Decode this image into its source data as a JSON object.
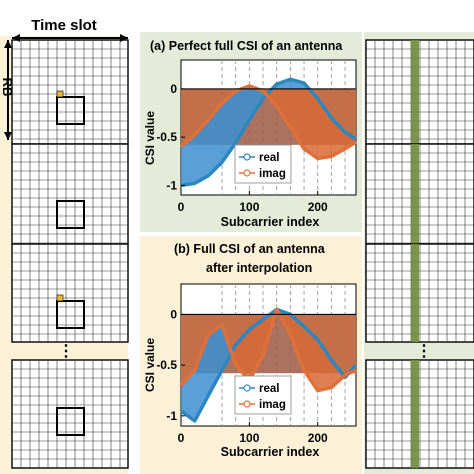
{
  "header": {
    "time_slot_label": "Time slot",
    "rb_label": "RB"
  },
  "left_column": {
    "background": "#fbf1d6",
    "pilot_color": "#f0b43c",
    "ellipsis": "⋮"
  },
  "right_column": {
    "background": "#e4ecd9",
    "stripe_color": "#6b8c3a",
    "ellipsis": "⋮"
  },
  "panel_a": {
    "title": "(a)  Perfect full CSI of an antenna",
    "background": "#e4ecd9",
    "ylabel": "CSI value",
    "xlabel": "Subcarrier index",
    "xticks": [
      "0",
      "100",
      "200"
    ],
    "yticks": [
      "0",
      "-0.5",
      "-1"
    ],
    "legend": [
      "real",
      "imag"
    ]
  },
  "panel_b": {
    "title_line1": "(b)  Full CSI of an antenna",
    "title_line2": "after interpolation",
    "background": "#fbf1d6",
    "ylabel": "CSI value",
    "xlabel": "Subcarrier index",
    "xticks": [
      "0",
      "100",
      "200"
    ],
    "yticks": [
      "0",
      "-0.5",
      "-1"
    ],
    "legend": [
      "real",
      "imag"
    ]
  },
  "colors": {
    "real": "#2e86c1",
    "real_fill": "#3b8fd0",
    "imag": "#e0703a",
    "imag_fill": "#d86a32"
  },
  "chart_data": [
    {
      "type": "line",
      "title": "Perfect full CSI of an antenna",
      "xlabel": "Subcarrier index",
      "ylabel": "CSI value",
      "xlim": [
        0,
        256
      ],
      "ylim": [
        -1.1,
        0.3
      ],
      "x": [
        0,
        20,
        40,
        60,
        80,
        100,
        120,
        140,
        160,
        180,
        200,
        220,
        240,
        256
      ],
      "series": [
        {
          "name": "real",
          "values": [
            -1.0,
            -0.98,
            -0.9,
            -0.76,
            -0.56,
            -0.32,
            -0.1,
            0.05,
            0.1,
            0.06,
            -0.1,
            -0.3,
            -0.45,
            -0.52
          ]
        },
        {
          "name": "imag",
          "values": [
            -0.6,
            -0.48,
            -0.32,
            -0.15,
            -0.02,
            0.03,
            -0.02,
            -0.18,
            -0.4,
            -0.62,
            -0.72,
            -0.7,
            -0.62,
            -0.55
          ]
        }
      ]
    },
    {
      "type": "line",
      "title": "Full CSI of an antenna after interpolation",
      "xlabel": "Subcarrier index",
      "ylabel": "CSI value",
      "xlim": [
        0,
        256
      ],
      "ylim": [
        -1.1,
        0.3
      ],
      "x": [
        0,
        20,
        40,
        60,
        80,
        100,
        120,
        140,
        160,
        180,
        200,
        220,
        240,
        256
      ],
      "series": [
        {
          "name": "real",
          "values": [
            -0.95,
            -1.05,
            -0.8,
            -0.55,
            -0.3,
            -0.15,
            -0.05,
            0.05,
            0.0,
            -0.12,
            -0.25,
            -0.45,
            -0.62,
            -0.5
          ]
        },
        {
          "name": "imag",
          "values": [
            -0.7,
            -0.55,
            -0.2,
            -0.1,
            -0.5,
            -0.65,
            -0.4,
            0.05,
            -0.2,
            -0.55,
            -0.75,
            -0.72,
            -0.6,
            -0.55
          ]
        }
      ]
    }
  ]
}
